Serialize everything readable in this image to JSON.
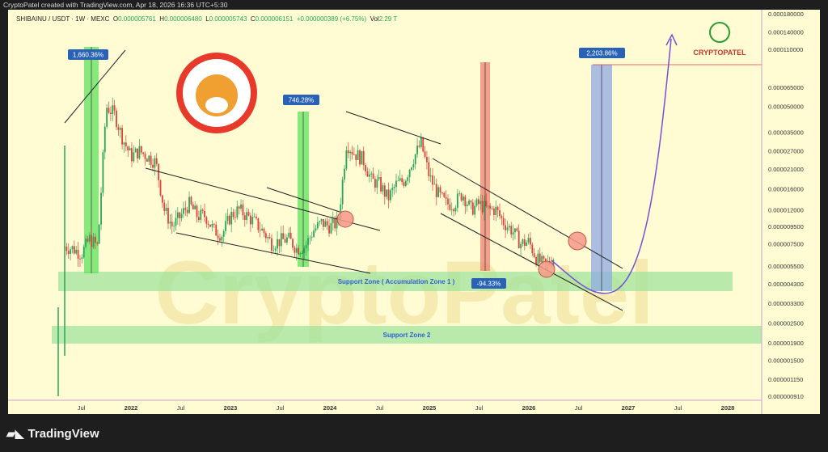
{
  "credit": "CryptoPatel created with TradingView.com, Apr 18, 2026 16:36 UTC+5:30",
  "legend": {
    "symbol": "SHIBAINU / USDT · 1W · MEXC",
    "o_label": "O",
    "o": "0.000005761",
    "h_label": "H",
    "h": "0.000006480",
    "l_label": "L",
    "l": "0.000005743",
    "c_label": "C",
    "c": "0.000006151",
    "change": "+0.000000389 (+6.75%)",
    "vol_label": "Vol",
    "vol": "2.29 T"
  },
  "brand": {
    "logo_text": "CRYPTOPATEL",
    "watermark": "CryptoPatel",
    "footer": "TradingView"
  },
  "colors": {
    "background": "#fffbd2",
    "up": "#26a65b",
    "down": "#e0413a",
    "target": "#e8394f",
    "projection": "#7a4fd6",
    "zone": "#9be39b",
    "measure_label": "#2962b5"
  },
  "chart_data": {
    "type": "candlestick",
    "symbol": "SHIBAINU/USDT",
    "interval": "1W",
    "exchange": "MEXC",
    "yscale": "log",
    "ylim": [
      9e-07,
      0.00018
    ],
    "y_ticks": [
      "0.000180000",
      "0.000140000",
      "0.000110000",
      "0.000065000",
      "0.000050000",
      "0.000035000",
      "0.000027000",
      "0.000021000",
      "0.000016000",
      "0.000012000",
      "0.000009500",
      "0.000007500",
      "0.000005500",
      "0.000004300",
      "0.000003300",
      "0.000002500",
      "0.000001900",
      "0.000001500",
      "0.000001150",
      "0.000000910"
    ],
    "x_ticks": [
      {
        "d": "2021-07",
        "t": "Jul"
      },
      {
        "d": "2022-01",
        "t": "2022"
      },
      {
        "d": "2022-07",
        "t": "Jul"
      },
      {
        "d": "2023-01",
        "t": "2023"
      },
      {
        "d": "2023-07",
        "t": "Jul"
      },
      {
        "d": "2024-01",
        "t": "2024"
      },
      {
        "d": "2024-07",
        "t": "Jul"
      },
      {
        "d": "2025-01",
        "t": "2025"
      },
      {
        "d": "2025-07",
        "t": "Jul"
      },
      {
        "d": "2026-01",
        "t": "2026"
      },
      {
        "d": "2026-07",
        "t": "Jul"
      },
      {
        "d": "2027-01",
        "t": "2027"
      },
      {
        "d": "2027-07",
        "t": "Jul"
      },
      {
        "d": "2028-01",
        "t": "2028"
      }
    ],
    "price_path": [
      [
        "2021-05",
        7.2e-06
      ],
      [
        "2021-06",
        7e-06
      ],
      [
        "2021-07",
        6.5e-06
      ],
      [
        "2021-08",
        8e-06
      ],
      [
        "2021-09",
        7.2e-06
      ],
      [
        "2021-10",
        5e-05
      ],
      [
        "2021-11",
        4.5e-05
      ],
      [
        "2021-12",
        3.2e-05
      ],
      [
        "2022-01",
        2.5e-05
      ],
      [
        "2022-02",
        2.7e-05
      ],
      [
        "2022-03",
        2.5e-05
      ],
      [
        "2022-04",
        2.3e-05
      ],
      [
        "2022-05",
        1.2e-05
      ],
      [
        "2022-06",
        9.5e-06
      ],
      [
        "2022-07",
        1.1e-05
      ],
      [
        "2022-08",
        1.3e-05
      ],
      [
        "2022-09",
        1.1e-05
      ],
      [
        "2022-10",
        1.1e-05
      ],
      [
        "2022-11",
        9e-06
      ],
      [
        "2022-12",
        8.5e-06
      ],
      [
        "2023-01",
        1.1e-05
      ],
      [
        "2023-02",
        1.2e-05
      ],
      [
        "2023-03",
        1.1e-05
      ],
      [
        "2023-04",
        1e-05
      ],
      [
        "2023-05",
        8.8e-06
      ],
      [
        "2023-06",
        7.5e-06
      ],
      [
        "2023-07",
        7.8e-06
      ],
      [
        "2023-08",
        8e-06
      ],
      [
        "2023-09",
        7e-06
      ],
      [
        "2023-10",
        7.2e-06
      ],
      [
        "2023-11",
        9e-06
      ],
      [
        "2023-12",
        1e-05
      ],
      [
        "2024-01",
        9.5e-06
      ],
      [
        "2024-02",
        1e-05
      ],
      [
        "2024-03",
        3e-05
      ],
      [
        "2024-04",
        2.6e-05
      ],
      [
        "2024-05",
        2.4e-05
      ],
      [
        "2024-06",
        1.8e-05
      ],
      [
        "2024-07",
        1.7e-05
      ],
      [
        "2024-08",
        1.4e-05
      ],
      [
        "2024-09",
        1.7e-05
      ],
      [
        "2024-10",
        1.8e-05
      ],
      [
        "2024-11",
        2.4e-05
      ],
      [
        "2024-12",
        3e-05
      ],
      [
        "2025-01",
        1.9e-05
      ],
      [
        "2025-02",
        1.5e-05
      ],
      [
        "2025-03",
        1.3e-05
      ],
      [
        "2025-04",
        1.3e-05
      ],
      [
        "2025-05",
        1.5e-05
      ],
      [
        "2025-06",
        1.2e-05
      ],
      [
        "2025-07",
        1.3e-05
      ],
      [
        "2025-08",
        1.2e-05
      ],
      [
        "2025-09",
        1.2e-05
      ],
      [
        "2025-10",
        1e-05
      ],
      [
        "2025-11",
        9e-06
      ],
      [
        "2025-12",
        7.5e-06
      ],
      [
        "2026-01",
        7.7e-06
      ],
      [
        "2026-02",
        6e-06
      ],
      [
        "2026-03",
        5.5e-06
      ],
      [
        "2026-04",
        6.2e-06
      ]
    ],
    "last_price": "0.000006151",
    "target_price": "0.000087899",
    "annotations": {
      "measures": [
        {
          "label": "1,660.36%",
          "type": "gain"
        },
        {
          "label": "746.28%",
          "type": "gain"
        },
        {
          "label": "-94.33%",
          "type": "loss"
        },
        {
          "label": "2,203.86%",
          "type": "target"
        }
      ],
      "zones": [
        {
          "label": "Support Zone ( Accumulation Zone 1 )"
        },
        {
          "label": "Support Zone 2"
        }
      ]
    }
  }
}
